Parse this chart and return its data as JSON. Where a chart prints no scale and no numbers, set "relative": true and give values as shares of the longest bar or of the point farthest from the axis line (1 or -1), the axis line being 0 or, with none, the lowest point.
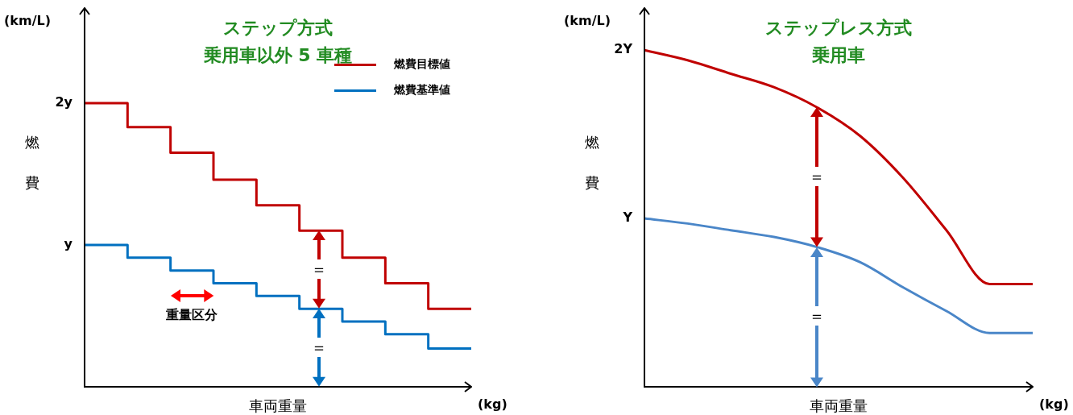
{
  "chart_data": [
    {
      "type": "step",
      "title": "ステップ方式",
      "subtitle": "乗用車以外 5 車種",
      "xlabel": "車両重量",
      "ylabel": "燃費",
      "annotations": [
        "(km/L)",
        "(kg)",
        "2y",
        "y",
        "重量区分",
        "＝",
        "＝"
      ],
      "categories": [
        null,
        null,
        null,
        null,
        null,
        null,
        null,
        null,
        null,
        null
      ],
      "series": [
        {
          "name": "燃費目標値",
          "color": "#c00000",
          "values": [
            1,
            0.915,
            0.825,
            0.73,
            0.64,
            0.55,
            0.455,
            0.365,
            0.275,
            0.275
          ]
        },
        {
          "name": "燃費基準値",
          "color": "#0070c0",
          "values": [
            0.5,
            0.455,
            0.41,
            0.365,
            0.32,
            0.275,
            0.23,
            0.185,
            0.135,
            0.135
          ]
        }
      ],
      "relative": true,
      "grid": false,
      "legend": "top right"
    },
    {
      "type": "line",
      "title": "ステップレス方式",
      "subtitle": "乗用車",
      "xlabel": "車両重量",
      "ylabel": "燃費",
      "annotations": [
        "(km/L)",
        "(kg)",
        "2Y",
        "Y",
        "＝",
        "＝"
      ],
      "categories": [
        null,
        null,
        null,
        null,
        null,
        null,
        null,
        null,
        null,
        null
      ],
      "series": [
        {
          "color": "#c00000",
          "values": [
            1,
            0.97,
            0.93,
            0.89,
            0.83,
            0.745,
            0.62,
            0.465,
            0.305,
            0.305
          ]
        },
        {
          "color": "#4a86c8",
          "values": [
            0.5,
            0.485,
            0.465,
            0.445,
            0.415,
            0.37,
            0.295,
            0.225,
            0.16,
            0.16
          ]
        }
      ],
      "relative": true,
      "grid": false,
      "legend": false
    }
  ]
}
